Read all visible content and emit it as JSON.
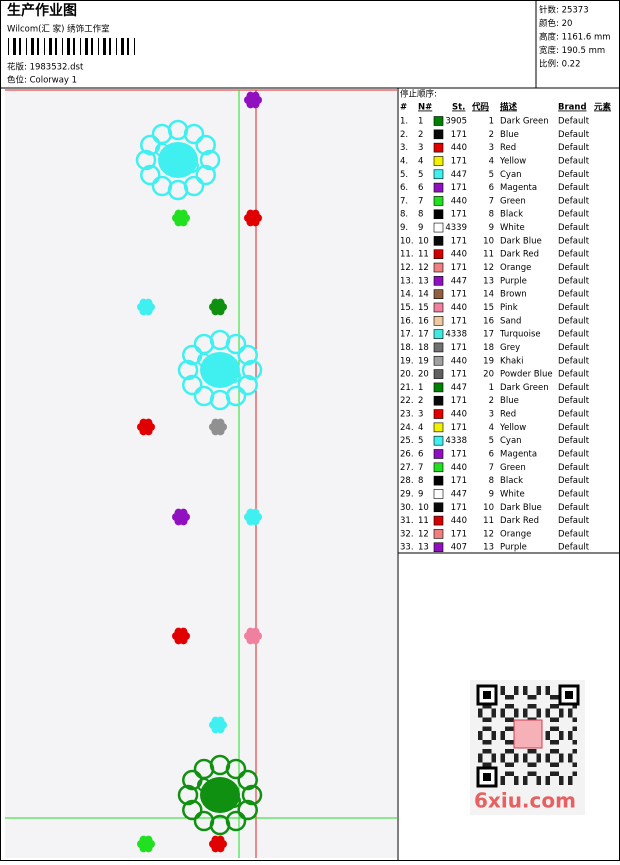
{
  "header": {
    "title": "生产作业图",
    "subtitle": "Wilcom(汇 家) 绣饰工作室",
    "design_file": "花版: 1983532.dst",
    "colorway": "色位: Colorway 1"
  },
  "info": [
    "针数: 25373",
    "颜色: 20",
    "高度: 1161.6 mm",
    "宽度: 190.5 mm",
    "比例: 0.22"
  ],
  "table": {
    "caption": "停止顺序:",
    "columns": [
      "#",
      "N#",
      "St.",
      "代码",
      "描述",
      "Brand",
      "元素"
    ],
    "rows": [
      [
        "1.",
        "1",
        "3905",
        "1",
        "Dark Green",
        "Default"
      ],
      [
        "2.",
        "2",
        "171",
        "2",
        "Blue",
        "Default"
      ],
      [
        "3.",
        "3",
        "440",
        "3",
        "Red",
        "Default"
      ],
      [
        "4.",
        "4",
        "171",
        "4",
        "Yellow",
        "Default"
      ],
      [
        "5.",
        "5",
        "447",
        "5",
        "Cyan",
        "Default"
      ],
      [
        "6.",
        "6",
        "171",
        "6",
        "Magenta",
        "Default"
      ],
      [
        "7.",
        "7",
        "440",
        "7",
        "Green",
        "Default"
      ],
      [
        "8.",
        "8",
        "171",
        "8",
        "Black",
        "Default"
      ],
      [
        "9.",
        "9",
        "4339",
        "9",
        "White",
        "Default"
      ],
      [
        "10.",
        "10",
        "171",
        "10",
        "Dark Blue",
        "Default"
      ],
      [
        "11.",
        "11",
        "440",
        "11",
        "Dark Red",
        "Default"
      ],
      [
        "12.",
        "12",
        "171",
        "12",
        "Orange",
        "Default"
      ],
      [
        "13.",
        "13",
        "447",
        "13",
        "Purple",
        "Default"
      ],
      [
        "14.",
        "14",
        "171",
        "14",
        "Brown",
        "Default"
      ],
      [
        "15.",
        "15",
        "440",
        "15",
        "Pink",
        "Default"
      ],
      [
        "16.",
        "16",
        "171",
        "16",
        "Sand",
        "Default"
      ],
      [
        "17.",
        "17",
        "4338",
        "17",
        "Turquoise",
        "Default"
      ],
      [
        "18.",
        "18",
        "171",
        "18",
        "Grey",
        "Default"
      ],
      [
        "19.",
        "19",
        "440",
        "19",
        "Khaki",
        "Default"
      ],
      [
        "20.",
        "20",
        "171",
        "20",
        "Powder Blue",
        "Default"
      ],
      [
        "21.",
        "1",
        "447",
        "1",
        "Dark Green",
        "Default"
      ],
      [
        "22.",
        "2",
        "171",
        "2",
        "Blue",
        "Default"
      ],
      [
        "23.",
        "3",
        "440",
        "3",
        "Red",
        "Default"
      ],
      [
        "24.",
        "4",
        "171",
        "4",
        "Yellow",
        "Default"
      ],
      [
        "25.",
        "5",
        "4338",
        "5",
        "Cyan",
        "Default"
      ],
      [
        "26.",
        "6",
        "171",
        "6",
        "Magenta",
        "Default"
      ],
      [
        "27.",
        "7",
        "440",
        "7",
        "Green",
        "Default"
      ],
      [
        "28.",
        "8",
        "171",
        "8",
        "Black",
        "Default"
      ],
      [
        "29.",
        "9",
        "447",
        "9",
        "White",
        "Default"
      ],
      [
        "30.",
        "10",
        "171",
        "10",
        "Dark Blue",
        "Default"
      ],
      [
        "31.",
        "11",
        "440",
        "11",
        "Dark Red",
        "Default"
      ],
      [
        "32.",
        "12",
        "171",
        "12",
        "Orange",
        "Default"
      ],
      [
        "33.",
        "13",
        "407",
        "13",
        "Purple",
        "Default"
      ]
    ],
    "swatches": [
      "#008000",
      "#0a0a0a",
      "#e00000",
      "#f0f000",
      "#40f0f0",
      "#9010c0",
      "#20e020",
      "#000000",
      "#ffffff",
      "#0a0a0a",
      "#d00000",
      "#f08080",
      "#9010c0",
      "#906040",
      "#f080a0",
      "#f0c8a0",
      "#40e8e0",
      "#707070",
      "#a0a0a0",
      "#606060",
      "#008000",
      "#0a0a0a",
      "#e00000",
      "#f0f000",
      "#40f0f0",
      "#9010c0",
      "#20e020",
      "#000000",
      "#ffffff",
      "#0a0a0a",
      "#d00000",
      "#f08080",
      "#9010c0"
    ]
  },
  "watermark": "6xiu.com"
}
